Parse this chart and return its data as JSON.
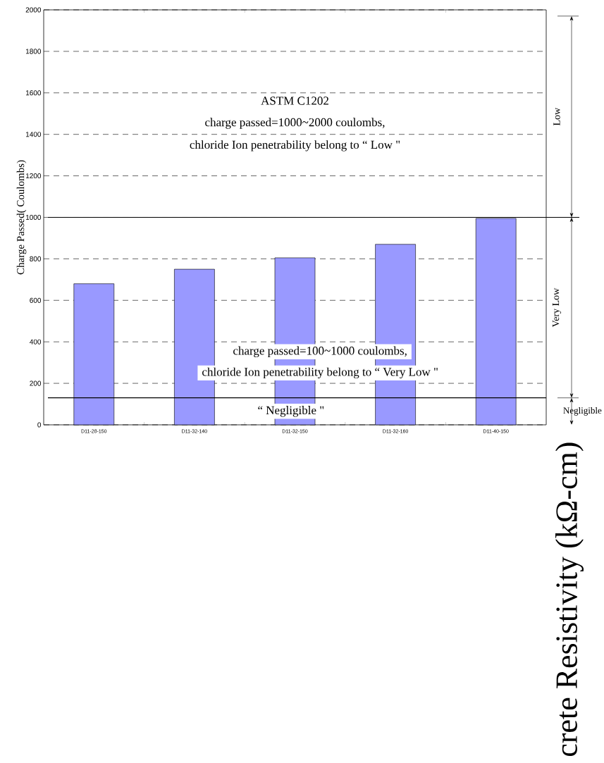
{
  "chart_data": {
    "type": "bar",
    "categories": [
      "D11-28-150",
      "D11-32-140",
      "D11-32-150",
      "D11-32-160",
      "D11-40-150"
    ],
    "values": [
      680,
      750,
      805,
      870,
      995
    ],
    "color": "#9999ff",
    "ylabel": "Charge Passed( Coulombs)",
    "y2label": "crete Resistivity (kΩ-cm)",
    "ylim": [
      0,
      2000
    ],
    "yticks": [
      0,
      200,
      400,
      600,
      800,
      1000,
      1200,
      1400,
      1600,
      1800,
      2000
    ],
    "grid": "y",
    "ref_lines": [
      {
        "axis": "y",
        "value": 1000
      },
      {
        "axis": "y",
        "value": 130
      }
    ],
    "annotations": [
      "ASTM C1202",
      "charge passed=1000~2000 coulombs,",
      "chloride Ion penetrability   belong to “ Low \"",
      "charge passed=100~1000 coulombs,",
      "chloride Ion penetrability   belong to “ Very Low \"",
      "“ Negligible \"",
      "Low",
      "Very Low",
      "Negligible"
    ]
  }
}
